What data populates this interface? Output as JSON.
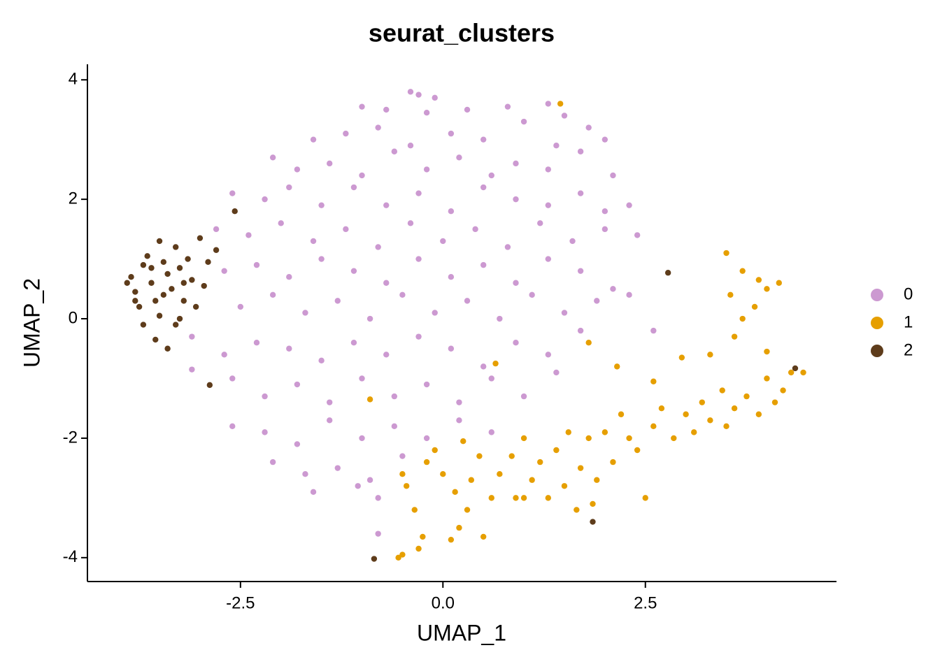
{
  "chart_data": {
    "type": "scatter",
    "title": "seurat_clusters",
    "x_label": "UMAP_1",
    "y_label": "UMAP_2",
    "xlim": [
      -4.39,
      4.86
    ],
    "ylim": [
      -4.4,
      4.26
    ],
    "xticks": [
      -2.5,
      {
        "value": 0,
        "label": "0.0"
      },
      2.5
    ],
    "yticks": [
      -4,
      -2,
      0,
      2,
      4
    ],
    "legend": "right",
    "series": [
      {
        "name": "0",
        "color": "#CC99D1",
        "x": [
          -0.4,
          -0.3,
          -0.1,
          -1.0,
          -0.7,
          -0.2,
          0.3,
          0.8,
          1.3,
          1.5,
          -1.6,
          -1.2,
          -0.8,
          -0.4,
          0.1,
          0.5,
          1.0,
          1.4,
          1.8,
          2.0,
          -2.1,
          -1.8,
          -1.4,
          -1.0,
          -0.6,
          -0.2,
          0.2,
          0.6,
          0.9,
          1.3,
          1.7,
          2.1,
          -2.6,
          -2.2,
          -1.9,
          -1.5,
          -1.1,
          -0.7,
          -0.3,
          0.1,
          0.5,
          0.9,
          1.3,
          1.7,
          2.0,
          2.3,
          -2.8,
          -2.4,
          -2.0,
          -1.6,
          -1.2,
          -0.8,
          -0.4,
          0.0,
          0.4,
          0.8,
          1.2,
          1.6,
          2.0,
          2.4,
          -2.7,
          -2.3,
          -1.9,
          -1.5,
          -1.1,
          -0.7,
          -0.3,
          0.1,
          0.5,
          0.9,
          1.3,
          1.7,
          2.1,
          -2.5,
          -2.1,
          -1.7,
          -1.3,
          -0.9,
          -0.5,
          -0.1,
          0.3,
          0.7,
          1.1,
          1.5,
          1.9,
          2.3,
          -3.1,
          -2.7,
          -2.3,
          -1.9,
          -1.5,
          -1.1,
          -0.7,
          -0.3,
          0.1,
          0.5,
          0.9,
          1.3,
          1.7,
          2.6,
          -3.1,
          -2.6,
          -2.2,
          -1.8,
          -1.4,
          -1.0,
          -0.6,
          -0.2,
          0.2,
          0.6,
          1.0,
          1.4,
          -2.6,
          -2.2,
          -1.8,
          -1.4,
          -1.0,
          -0.6,
          -0.2,
          0.2,
          0.6,
          -2.1,
          -1.7,
          -1.3,
          -0.9,
          -0.5,
          -1.6,
          -1.05,
          -0.8,
          -0.8
        ],
        "y": [
          3.8,
          3.75,
          3.7,
          3.55,
          3.5,
          3.45,
          3.5,
          3.55,
          3.6,
          3.4,
          3.0,
          3.1,
          3.2,
          2.9,
          3.1,
          3.0,
          3.3,
          2.9,
          3.2,
          3.0,
          2.7,
          2.5,
          2.6,
          2.4,
          2.8,
          2.5,
          2.7,
          2.4,
          2.6,
          2.5,
          2.8,
          2.4,
          2.1,
          2.0,
          2.2,
          1.9,
          2.2,
          1.9,
          2.1,
          1.8,
          2.2,
          2.0,
          1.9,
          2.1,
          1.8,
          1.9,
          1.5,
          1.4,
          1.6,
          1.3,
          1.5,
          1.2,
          1.6,
          1.3,
          1.5,
          1.2,
          1.6,
          1.3,
          1.5,
          1.4,
          0.8,
          0.9,
          0.7,
          1.0,
          0.8,
          0.6,
          1.0,
          0.7,
          0.9,
          0.6,
          1.0,
          0.8,
          0.5,
          0.2,
          0.4,
          0.1,
          0.3,
          0.0,
          0.4,
          0.1,
          0.3,
          0.0,
          0.4,
          0.1,
          0.3,
          0.4,
          -0.3,
          -0.6,
          -0.4,
          -0.5,
          -0.7,
          -0.4,
          -0.6,
          -0.3,
          -0.5,
          -0.8,
          -0.4,
          -0.6,
          -0.2,
          -0.2,
          -0.85,
          -1.0,
          -1.3,
          -1.1,
          -1.4,
          -1.0,
          -1.3,
          -1.1,
          -1.4,
          -1.0,
          -1.3,
          -0.9,
          -1.8,
          -1.9,
          -2.1,
          -1.7,
          -2.0,
          -1.8,
          -2.0,
          -1.7,
          -1.9,
          -2.4,
          -2.6,
          -2.5,
          -2.7,
          -2.3,
          -2.9,
          -2.8,
          -3.0,
          -3.6
        ]
      },
      {
        "name": "1",
        "color": "#E69F00",
        "x": [
          -0.55,
          -0.5,
          -0.3,
          -0.25,
          -0.35,
          -0.45,
          -0.5,
          -0.2,
          0.0,
          0.1,
          0.2,
          0.3,
          0.15,
          0.35,
          0.45,
          0.5,
          0.6,
          0.7,
          0.85,
          0.9,
          1.0,
          1.1,
          1.2,
          1.3,
          1.4,
          1.5,
          1.55,
          1.65,
          1.7,
          1.8,
          1.85,
          1.9,
          2.0,
          2.1,
          2.2,
          2.3,
          2.4,
          2.5,
          2.6,
          2.7,
          2.85,
          3.0,
          3.1,
          3.2,
          3.3,
          3.45,
          3.5,
          3.6,
          3.75,
          3.9,
          4.0,
          4.1,
          4.2,
          4.3,
          4.45,
          3.6,
          3.7,
          3.85,
          3.55,
          3.7,
          3.9,
          4.0,
          4.15,
          3.5,
          3.3,
          2.95,
          1.8,
          2.15,
          2.6,
          -0.9,
          0.65,
          1.45,
          -0.1,
          0.25,
          1.0,
          4.0
        ],
        "y": [
          -4.0,
          -3.95,
          -3.85,
          -3.65,
          -3.2,
          -2.8,
          -2.6,
          -2.4,
          -2.6,
          -3.7,
          -3.5,
          -3.2,
          -2.9,
          -2.7,
          -2.3,
          -3.65,
          -3.0,
          -2.6,
          -2.3,
          -3.0,
          -2.0,
          -2.7,
          -2.4,
          -3.0,
          -2.2,
          -2.8,
          -1.9,
          -3.2,
          -2.5,
          -2.0,
          -3.1,
          -2.7,
          -1.9,
          -2.4,
          -1.6,
          -2.0,
          -2.2,
          -3.0,
          -1.8,
          -1.5,
          -2.0,
          -1.6,
          -1.9,
          -1.4,
          -1.7,
          -1.2,
          -1.8,
          -1.5,
          -1.3,
          -1.6,
          -1.0,
          -1.4,
          -1.2,
          -0.9,
          -0.9,
          -0.3,
          0.0,
          0.2,
          0.4,
          0.8,
          0.65,
          0.5,
          0.6,
          1.1,
          -0.6,
          -0.65,
          -0.4,
          -0.8,
          -1.05,
          -1.35,
          -0.75,
          3.6,
          -2.2,
          -2.05,
          -3.0,
          -0.55
        ]
      },
      {
        "name": "2",
        "color": "#5E3C1B",
        "x": [
          -3.9,
          -3.85,
          -3.8,
          -3.75,
          -3.7,
          -3.65,
          -3.6,
          -3.55,
          -3.5,
          -3.45,
          -3.4,
          -3.35,
          -3.3,
          -3.25,
          -3.2,
          -3.15,
          -3.1,
          -3.05,
          -3.0,
          -2.95,
          -2.9,
          -3.7,
          -3.55,
          -3.4,
          -3.3,
          -3.6,
          -3.45,
          -3.2,
          -2.8,
          -3.8,
          -3.5,
          -3.25,
          -2.57,
          2.78,
          4.35,
          1.85,
          -0.85,
          -2.88
        ],
        "y": [
          0.6,
          0.7,
          0.45,
          0.2,
          0.9,
          1.05,
          0.6,
          0.3,
          0.05,
          0.95,
          0.75,
          0.5,
          1.2,
          0.85,
          0.3,
          1.0,
          0.65,
          0.2,
          1.35,
          0.55,
          0.95,
          -0.1,
          -0.35,
          -0.5,
          -0.1,
          0.85,
          0.4,
          0.6,
          1.15,
          0.3,
          1.3,
          0.0,
          1.8,
          0.77,
          -0.83,
          -3.4,
          -4.02,
          -1.11
        ]
      }
    ]
  }
}
